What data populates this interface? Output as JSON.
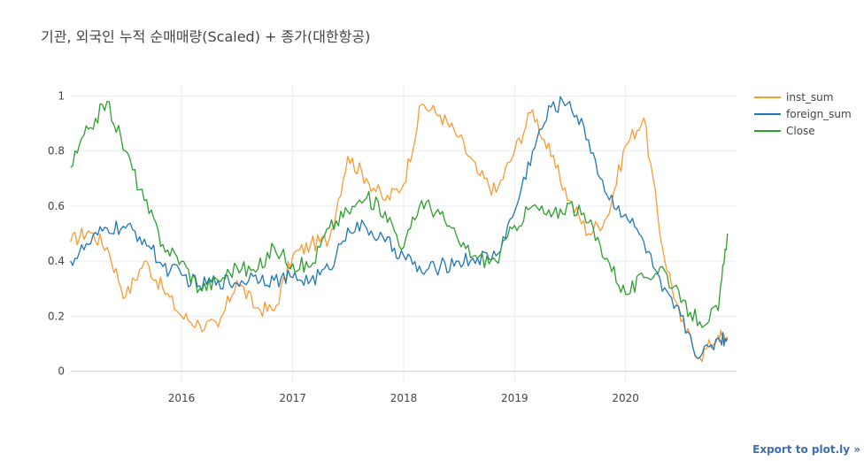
{
  "chart_data": {
    "type": "line",
    "title": "기관, 외국인 누적 순매매량(Scaled) + 종가(대한항공)",
    "xlabel": "",
    "ylabel": "",
    "x_range": [
      "2015-01-02",
      "2020-12-31"
    ],
    "x_ticks": [
      "2016",
      "2017",
      "2018",
      "2019",
      "2020"
    ],
    "y_ticks": [
      "0",
      "0.2",
      "0.4",
      "0.6",
      "0.8",
      "1"
    ],
    "ylim": [
      -0.04,
      1.04
    ],
    "grid": true,
    "legend_position": "top-right",
    "x": [
      "2015-01",
      "2015-03",
      "2015-05",
      "2015-07",
      "2015-09",
      "2015-11",
      "2016-01",
      "2016-03",
      "2016-05",
      "2016-07",
      "2016-09",
      "2016-11",
      "2017-01",
      "2017-03",
      "2017-05",
      "2017-07",
      "2017-09",
      "2017-11",
      "2018-01",
      "2018-03",
      "2018-05",
      "2018-07",
      "2018-09",
      "2018-11",
      "2019-01",
      "2019-03",
      "2019-05",
      "2019-07",
      "2019-09",
      "2019-11",
      "2020-01",
      "2020-03",
      "2020-05",
      "2020-07",
      "2020-09",
      "2020-11",
      "2020-12"
    ],
    "series": [
      {
        "name": "inst_sum",
        "color": "#ff9933",
        "values": [
          0.47,
          0.51,
          0.45,
          0.27,
          0.4,
          0.3,
          0.2,
          0.17,
          0.16,
          0.33,
          0.23,
          0.22,
          0.42,
          0.46,
          0.48,
          0.78,
          0.7,
          0.62,
          0.68,
          0.97,
          0.93,
          0.85,
          0.72,
          0.65,
          0.8,
          0.95,
          0.78,
          0.62,
          0.5,
          0.56,
          0.82,
          0.92,
          0.45,
          0.18,
          0.05,
          0.13,
          0.12
        ]
      },
      {
        "name": "foreign_sum",
        "color": "#1f77b4",
        "values": [
          0.4,
          0.46,
          0.52,
          0.52,
          0.48,
          0.38,
          0.35,
          0.31,
          0.33,
          0.32,
          0.35,
          0.33,
          0.34,
          0.33,
          0.37,
          0.52,
          0.52,
          0.47,
          0.42,
          0.36,
          0.38,
          0.4,
          0.41,
          0.42,
          0.58,
          0.8,
          0.96,
          0.98,
          0.84,
          0.64,
          0.57,
          0.47,
          0.29,
          0.2,
          0.05,
          0.12,
          0.12
        ]
      },
      {
        "name": "Close",
        "color": "#2ca02c",
        "values": [
          0.74,
          0.88,
          0.98,
          0.8,
          0.62,
          0.46,
          0.4,
          0.3,
          0.33,
          0.38,
          0.36,
          0.45,
          0.39,
          0.38,
          0.52,
          0.58,
          0.63,
          0.58,
          0.45,
          0.62,
          0.57,
          0.47,
          0.41,
          0.4,
          0.53,
          0.6,
          0.56,
          0.61,
          0.54,
          0.41,
          0.28,
          0.34,
          0.38,
          0.25,
          0.18,
          0.22,
          0.5
        ]
      }
    ]
  },
  "legend": [
    {
      "label": "inst_sum",
      "color": "#ff9933"
    },
    {
      "label": "foreign_sum",
      "color": "#1f77b4"
    },
    {
      "label": "Close",
      "color": "#2ca02c"
    }
  ],
  "export_link": "Export to plot.ly »"
}
